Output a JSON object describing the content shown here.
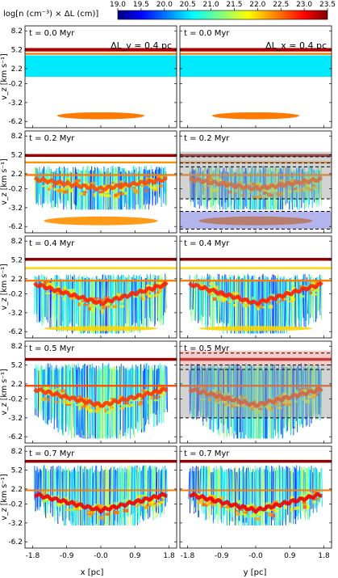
{
  "chart_data": {
    "type": "heatmap",
    "colorbar": {
      "label": "log[n (cm⁻³) × ΔL (cm)]",
      "ticks": [
        "19.0",
        "19.5",
        "20.0",
        "20.5",
        "21.0",
        "21.5",
        "22.0",
        "22.5",
        "23.0",
        "23.5"
      ],
      "range": [
        19.0,
        23.5
      ],
      "colormap": "jet"
    },
    "ylabel": "v_z [km s⁻¹]",
    "ylim": [
      -7.2,
      9.0
    ],
    "y_ticks": [
      "8.2",
      "5.2",
      "2.2",
      "-0.2",
      "-3.2",
      "-6.2"
    ],
    "columns": [
      {
        "xlabel": "x [pc]",
        "slice_label": "ΔL_y = 0.4 pc",
        "x_ticks": [
          "-1.8",
          "-0.9",
          "-0.0",
          "0.9",
          "1.8"
        ]
      },
      {
        "xlabel": "y [pc]",
        "slice_label": "ΔL_x = 0.4 pc",
        "x_ticks": [
          "-1.8",
          "-0.9",
          "-0.0",
          "0.9",
          "1.8"
        ]
      }
    ],
    "xlim": [
      -2.0,
      2.0
    ],
    "panels": [
      {
        "time": "t = 0.0 Myr",
        "bands": [
          {
            "v": 5.2,
            "w": 0.55,
            "level": 23.3
          },
          {
            "v": 4.55,
            "w": 0.3,
            "level": 22.4
          }
        ],
        "wall": {
          "top": 4.3,
          "bottom": 0.9,
          "level": 20.6
        },
        "clump": {
          "v": -5.3,
          "w": 0.55,
          "level": 22.4
        }
      },
      {
        "time": "t = 0.2 Myr",
        "bands": [
          {
            "v": 5.1,
            "w": 0.45,
            "level": 23.4
          },
          {
            "v": 4.0,
            "w": 0.3,
            "level": 22.3
          },
          {
            "v": 2.0,
            "w": 0.3,
            "level": 22.4
          }
        ],
        "ridge": {
          "center": 0.0,
          "depth": 1.5,
          "level": 22.6
        },
        "bottom": {
          "v": -5.3,
          "w": 0.7,
          "level": 22.3
        },
        "spread": {
          "top": 3.5,
          "bottom": -3.5
        },
        "overlay": [
          {
            "top": 5.7,
            "bottom": -1.8,
            "color": "#9e9e9e"
          },
          {
            "top": -3.8,
            "bottom": -6.6,
            "color": "#5b5bd8"
          }
        ],
        "dashed": [
          4.9,
          3.9,
          3.3,
          -1.8,
          -3.8,
          -6.6
        ]
      },
      {
        "time": "t = 0.4 Myr",
        "bands": [
          {
            "v": 5.3,
            "w": 0.45,
            "level": 23.4
          },
          {
            "v": 3.9,
            "w": 0.3,
            "level": 22.0
          },
          {
            "v": 1.9,
            "w": 0.3,
            "level": 22.4
          }
        ],
        "ridge": {
          "center": 0.0,
          "depth": 3.0,
          "level": 22.8
        },
        "bottom": {
          "v": -5.7,
          "w": 0.4,
          "level": 22.0
        },
        "spread": {
          "top": 3.0,
          "bottom": -6.5
        },
        "overlay": [],
        "dashed": []
      },
      {
        "time": "t = 0.5 Myr",
        "bands": [
          {
            "v": 6.1,
            "w": 0.45,
            "level": 23.4
          },
          {
            "v": 1.9,
            "w": 0.3,
            "level": 22.6
          }
        ],
        "ridge": {
          "center": 0.0,
          "depth": 2.5,
          "level": 22.7
        },
        "spread": {
          "top": 5.5,
          "bottom": -6.5
        },
        "overlay": [
          {
            "top": 7.5,
            "bottom": 5.2,
            "color": "#f08a84"
          },
          {
            "top": 5.2,
            "bottom": -3.2,
            "color": "#9e9e9e"
          }
        ],
        "dashed": [
          7.1,
          5.2,
          4.5,
          -3.2
        ]
      },
      {
        "time": "t = 0.7 Myr",
        "bands": [
          {
            "v": 6.6,
            "w": 0.45,
            "level": 23.4
          },
          {
            "v": 2.0,
            "w": 0.25,
            "level": 22.4
          }
        ],
        "ridge": {
          "center": 0.0,
          "depth": 2.5,
          "level": 23.0
        },
        "spread": {
          "top": 6.0,
          "bottom": -3.6
        },
        "overlay": [],
        "dashed": []
      }
    ]
  }
}
